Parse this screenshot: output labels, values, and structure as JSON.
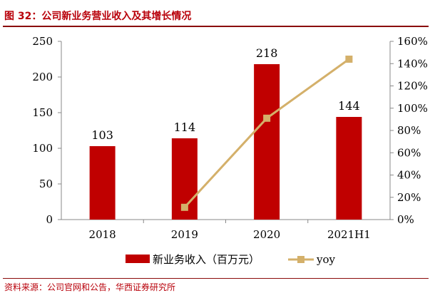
{
  "header": {
    "figure_title": "图 32：公司新业务营业收入及其增长情况"
  },
  "footer": {
    "source": "资料来源：公司官网和公告，华西证券研究所"
  },
  "colors": {
    "bar": "#c00000",
    "line": "#d4b06a",
    "title": "#b8000a",
    "axis": "#888888"
  },
  "chart_data": {
    "type": "bar",
    "categories": [
      "2018",
      "2019",
      "2020",
      "2021H1"
    ],
    "series": [
      {
        "name": "新业务收入（百万元）",
        "type": "bar",
        "axis": "left",
        "values": [
          103,
          114,
          218,
          144
        ],
        "labels": [
          "103",
          "114",
          "218",
          "144"
        ]
      },
      {
        "name": "yoy",
        "type": "line",
        "axis": "right",
        "values": [
          null,
          11,
          91,
          144
        ]
      }
    ],
    "y_left": {
      "min": 0,
      "max": 250,
      "ticks": [
        0,
        50,
        100,
        150,
        200,
        250
      ],
      "tick_labels": [
        "0",
        "50",
        "100",
        "150",
        "200",
        "250"
      ]
    },
    "y_right": {
      "min": 0,
      "max": 160,
      "ticks": [
        0,
        20,
        40,
        60,
        80,
        100,
        120,
        140,
        160
      ],
      "tick_labels": [
        "0%",
        "20%",
        "40%",
        "60%",
        "80%",
        "100%",
        "120%",
        "140%",
        "160%"
      ]
    },
    "grid": false,
    "legend_position": "bottom"
  }
}
